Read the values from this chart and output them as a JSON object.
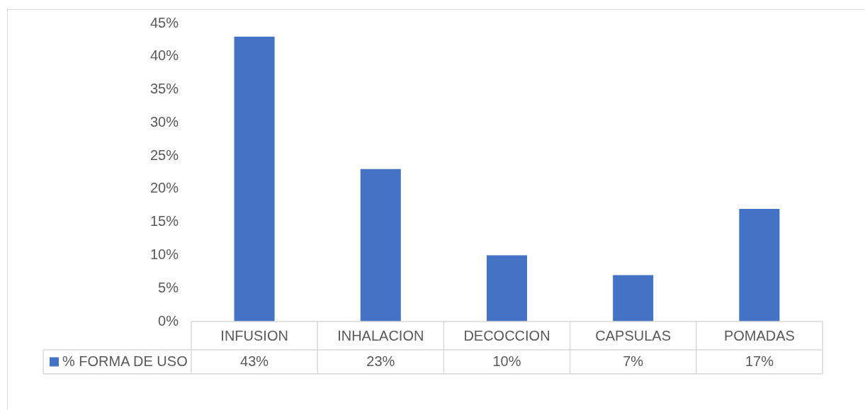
{
  "chart_data": {
    "type": "bar",
    "categories": [
      "INFUSION",
      "INHALACION",
      "DECOCCION",
      "CAPSULAS",
      "POMADAS"
    ],
    "series": [
      {
        "name": "% FORMA DE USO",
        "color": "#4472c4",
        "values": [
          43,
          23,
          10,
          7,
          17
        ],
        "value_labels": [
          "43%",
          "23%",
          "10%",
          "7%",
          "17%"
        ]
      }
    ],
    "ylim": [
      0,
      45
    ],
    "yticks": [
      {
        "value": 0,
        "label": "0%"
      },
      {
        "value": 5,
        "label": "5%"
      },
      {
        "value": 10,
        "label": "10%"
      },
      {
        "value": 15,
        "label": "15%"
      },
      {
        "value": 20,
        "label": "20%"
      },
      {
        "value": 25,
        "label": "25%"
      },
      {
        "value": 30,
        "label": "30%"
      },
      {
        "value": 35,
        "label": "35%"
      },
      {
        "value": 40,
        "label": "40%"
      },
      {
        "value": 45,
        "label": "45%"
      }
    ],
    "legend": "bottom"
  }
}
